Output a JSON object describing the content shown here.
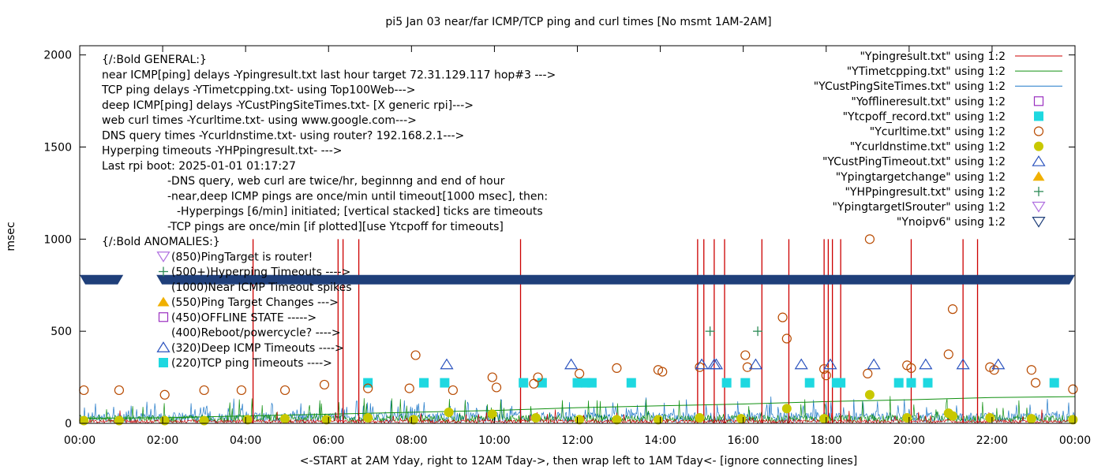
{
  "chart_data": {
    "type": "line",
    "title": "pi5 Jan 03  near/far ICMP/TCP ping and curl times [No msmt 1AM-2AM]",
    "xlabel": "<-START at 2AM Yday, right to 12AM Tday->, then wrap left to 1AM Tday<- [ignore connecting lines]",
    "ylabel": "msec",
    "xlim": [
      0,
      24
    ],
    "ylim": [
      0,
      2050
    ],
    "x_tick_values": [
      0,
      2,
      4,
      6,
      8,
      10,
      12,
      14,
      16,
      18,
      20,
      22,
      24
    ],
    "x_tick_labels": [
      "00:00",
      "02:00",
      "04:00",
      "06:00",
      "08:00",
      "10:00",
      "12:00",
      "14:00",
      "16:00",
      "18:00",
      "20:00",
      "22:00",
      "00:00"
    ],
    "y_ticks": [
      0,
      500,
      1000,
      1500,
      2000
    ],
    "grid": false,
    "legend_position": "top-right",
    "legend": [
      {
        "label": "\"Ypingresult.txt\" using 1:2",
        "marker": "line",
        "color": "#cc0000"
      },
      {
        "label": "\"YTimetcpping.txt\" using 1:2",
        "marker": "line",
        "color": "#109010"
      },
      {
        "label": "\"YCustPingSiteTimes.txt\" using 1:2",
        "marker": "line",
        "color": "#1f78c8"
      },
      {
        "label": "\"Yofflineresult.txt\" using 1:2",
        "marker": "square-open",
        "color": "#9a2fc0"
      },
      {
        "label": "\"Ytcpoff_record.txt\" using 1:2",
        "marker": "square-filled",
        "color": "#1ed8e0"
      },
      {
        "label": "\"Ycurltime.txt\" using 1:2",
        "marker": "circle-open",
        "color": "#b84a00"
      },
      {
        "label": "\"Ycurldnstime.txt\" using 1:2",
        "marker": "circle-filled",
        "color": "#c8c800"
      },
      {
        "label": "\"YCustPingTimeout.txt\" using 1:2",
        "marker": "triangle-up-open",
        "color": "#2a52be"
      },
      {
        "label": "\"Ypingtargetchange\" using 1:2",
        "marker": "triangle-up-filled",
        "color": "#f0b000"
      },
      {
        "label": "\"YHPpingresult.txt\" using 1:2",
        "marker": "plus",
        "color": "#2e8b57"
      },
      {
        "label": "\"YpingtargetISrouter\" using 1:2",
        "marker": "triangle-down-open",
        "color": "#b070e0"
      },
      {
        "label": "\"Ynoipv6\" using 1:2",
        "marker": "triangle-down-open",
        "color": "#1f3f7a"
      }
    ],
    "notes": [
      "{/:Bold GENERAL:}",
      "near ICMP[ping] delays -Ypingresult.txt last hour target 72.31.129.117 hop#3 --->",
      "TCP ping delays -YTimetcpping.txt- using Top100Web--->",
      "deep ICMP[ping] delays -YCustPingSiteTimes.txt- [X generic rpi]--->",
      "web curl times -Ycurltime.txt- using www.google.com--->",
      "DNS query times -Ycurldnstime.txt- using router? 192.168.2.1--->",
      "Hyperping timeouts -YHPpingresult.txt- --->",
      "Last rpi boot: 2025-01-01 01:17:27",
      "-DNS query, web curl are twice/hr, beginnng and end of hour",
      "-near,deep ICMP pings are once/min until timeout[1000 msec], then:",
      "-Hyperpings [6/min] initiated; [vertical stacked] ticks are timeouts",
      "-TCP pings are once/min [if plotted][use Ytcpoff for timeouts]",
      "{/:Bold ANOMALIES:}",
      "(850)PingTarget is router!",
      "(500+)Hyperping Timeouts ---->",
      "(1000)Near ICMP Timeout spikes",
      "(550)Ping Target Changes --->",
      "(450)OFFLINE STATE ----->",
      "(400)Reboot/powercycle? ---->",
      "(320)Deep ICMP Timeouts ---->",
      "(220)TCP ping Timeouts ---->"
    ],
    "noipv6_band_value": 780,
    "noipv6_band_gap": [
      1.05,
      1.85
    ],
    "near_icmp_spikes": [
      {
        "x": 4.18,
        "y": 1000
      },
      {
        "x": 6.23,
        "y": 1000
      },
      {
        "x": 6.35,
        "y": 1000
      },
      {
        "x": 6.73,
        "y": 1000
      },
      {
        "x": 10.63,
        "y": 1000
      },
      {
        "x": 14.9,
        "y": 1000
      },
      {
        "x": 15.05,
        "y": 1000
      },
      {
        "x": 15.3,
        "y": 1000
      },
      {
        "x": 15.55,
        "y": 1000
      },
      {
        "x": 16.45,
        "y": 1000
      },
      {
        "x": 17.1,
        "y": 1000
      },
      {
        "x": 17.95,
        "y": 1000
      },
      {
        "x": 18.05,
        "y": 1000
      },
      {
        "x": 18.15,
        "y": 1000
      },
      {
        "x": 18.35,
        "y": 1000
      },
      {
        "x": 20.05,
        "y": 1000
      },
      {
        "x": 21.3,
        "y": 1000
      },
      {
        "x": 21.65,
        "y": 1000
      }
    ],
    "curl_times": [
      {
        "x": 0.1,
        "y": 180
      },
      {
        "x": 0.95,
        "y": 180
      },
      {
        "x": 2.05,
        "y": 155
      },
      {
        "x": 3.0,
        "y": 180
      },
      {
        "x": 3.9,
        "y": 180
      },
      {
        "x": 4.95,
        "y": 180
      },
      {
        "x": 5.9,
        "y": 210
      },
      {
        "x": 6.95,
        "y": 190
      },
      {
        "x": 7.95,
        "y": 190
      },
      {
        "x": 8.1,
        "y": 370
      },
      {
        "x": 9.0,
        "y": 180
      },
      {
        "x": 9.95,
        "y": 250
      },
      {
        "x": 10.05,
        "y": 195
      },
      {
        "x": 10.95,
        "y": 215
      },
      {
        "x": 11.05,
        "y": 250
      },
      {
        "x": 12.05,
        "y": 270
      },
      {
        "x": 12.95,
        "y": 300
      },
      {
        "x": 13.95,
        "y": 290
      },
      {
        "x": 14.05,
        "y": 280
      },
      {
        "x": 14.95,
        "y": 305
      },
      {
        "x": 16.05,
        "y": 370
      },
      {
        "x": 16.1,
        "y": 305
      },
      {
        "x": 16.95,
        "y": 575
      },
      {
        "x": 17.05,
        "y": 460
      },
      {
        "x": 17.95,
        "y": 295
      },
      {
        "x": 18.0,
        "y": 260
      },
      {
        "x": 19.0,
        "y": 270
      },
      {
        "x": 19.05,
        "y": 1000
      },
      {
        "x": 19.95,
        "y": 315
      },
      {
        "x": 20.05,
        "y": 300
      },
      {
        "x": 20.95,
        "y": 375
      },
      {
        "x": 21.05,
        "y": 620
      },
      {
        "x": 21.95,
        "y": 305
      },
      {
        "x": 22.05,
        "y": 290
      },
      {
        "x": 22.95,
        "y": 290
      },
      {
        "x": 23.05,
        "y": 220
      },
      {
        "x": 23.95,
        "y": 185
      }
    ],
    "dns_times": [
      {
        "x": 0.1,
        "y": 15
      },
      {
        "x": 0.95,
        "y": 15
      },
      {
        "x": 2.05,
        "y": 15
      },
      {
        "x": 3.0,
        "y": 15
      },
      {
        "x": 4.05,
        "y": 20
      },
      {
        "x": 4.95,
        "y": 25
      },
      {
        "x": 5.95,
        "y": 20
      },
      {
        "x": 6.95,
        "y": 30
      },
      {
        "x": 8.05,
        "y": 20
      },
      {
        "x": 8.9,
        "y": 60
      },
      {
        "x": 9.95,
        "y": 50
      },
      {
        "x": 11.0,
        "y": 30
      },
      {
        "x": 12.05,
        "y": 20
      },
      {
        "x": 12.95,
        "y": 20
      },
      {
        "x": 13.95,
        "y": 20
      },
      {
        "x": 14.95,
        "y": 30
      },
      {
        "x": 15.95,
        "y": 25
      },
      {
        "x": 17.05,
        "y": 80
      },
      {
        "x": 17.95,
        "y": 25
      },
      {
        "x": 19.05,
        "y": 155
      },
      {
        "x": 19.95,
        "y": 30
      },
      {
        "x": 20.95,
        "y": 55
      },
      {
        "x": 21.05,
        "y": 40
      },
      {
        "x": 21.95,
        "y": 30
      },
      {
        "x": 22.95,
        "y": 25
      },
      {
        "x": 23.95,
        "y": 20
      }
    ],
    "deep_icmp_timeouts": [
      {
        "x": 8.85,
        "y": 320
      },
      {
        "x": 11.85,
        "y": 320
      },
      {
        "x": 15.0,
        "y": 320
      },
      {
        "x": 15.3,
        "y": 320
      },
      {
        "x": 15.35,
        "y": 320
      },
      {
        "x": 16.3,
        "y": 320
      },
      {
        "x": 17.4,
        "y": 320
      },
      {
        "x": 18.1,
        "y": 320
      },
      {
        "x": 19.15,
        "y": 320
      },
      {
        "x": 20.4,
        "y": 320
      },
      {
        "x": 21.3,
        "y": 320
      },
      {
        "x": 22.15,
        "y": 320
      }
    ],
    "tcp_timeouts": [
      {
        "x": 6.95,
        "y": 220
      },
      {
        "x": 8.3,
        "y": 220
      },
      {
        "x": 8.8,
        "y": 220
      },
      {
        "x": 10.7,
        "y": 220
      },
      {
        "x": 11.15,
        "y": 220
      },
      {
        "x": 12.0,
        "y": 220
      },
      {
        "x": 12.2,
        "y": 220
      },
      {
        "x": 12.35,
        "y": 220
      },
      {
        "x": 13.3,
        "y": 220
      },
      {
        "x": 15.6,
        "y": 220
      },
      {
        "x": 16.05,
        "y": 220
      },
      {
        "x": 17.6,
        "y": 220
      },
      {
        "x": 18.25,
        "y": 220
      },
      {
        "x": 18.35,
        "y": 220
      },
      {
        "x": 19.75,
        "y": 220
      },
      {
        "x": 20.05,
        "y": 220
      },
      {
        "x": 20.45,
        "y": 220
      },
      {
        "x": 23.5,
        "y": 220
      }
    ],
    "hyperping_timeouts": [
      {
        "x": 15.2,
        "y": 500
      },
      {
        "x": 16.35,
        "y": 500
      }
    ],
    "tcp_ping_trend": [
      {
        "x": 0,
        "y": 28
      },
      {
        "x": 2,
        "y": 30
      },
      {
        "x": 4,
        "y": 40
      },
      {
        "x": 6,
        "y": 50
      },
      {
        "x": 8,
        "y": 60
      },
      {
        "x": 10,
        "y": 70
      },
      {
        "x": 12,
        "y": 85
      },
      {
        "x": 14,
        "y": 95
      },
      {
        "x": 16,
        "y": 105
      },
      {
        "x": 18,
        "y": 118
      },
      {
        "x": 20,
        "y": 128
      },
      {
        "x": 22,
        "y": 140
      },
      {
        "x": 24,
        "y": 145
      }
    ]
  }
}
